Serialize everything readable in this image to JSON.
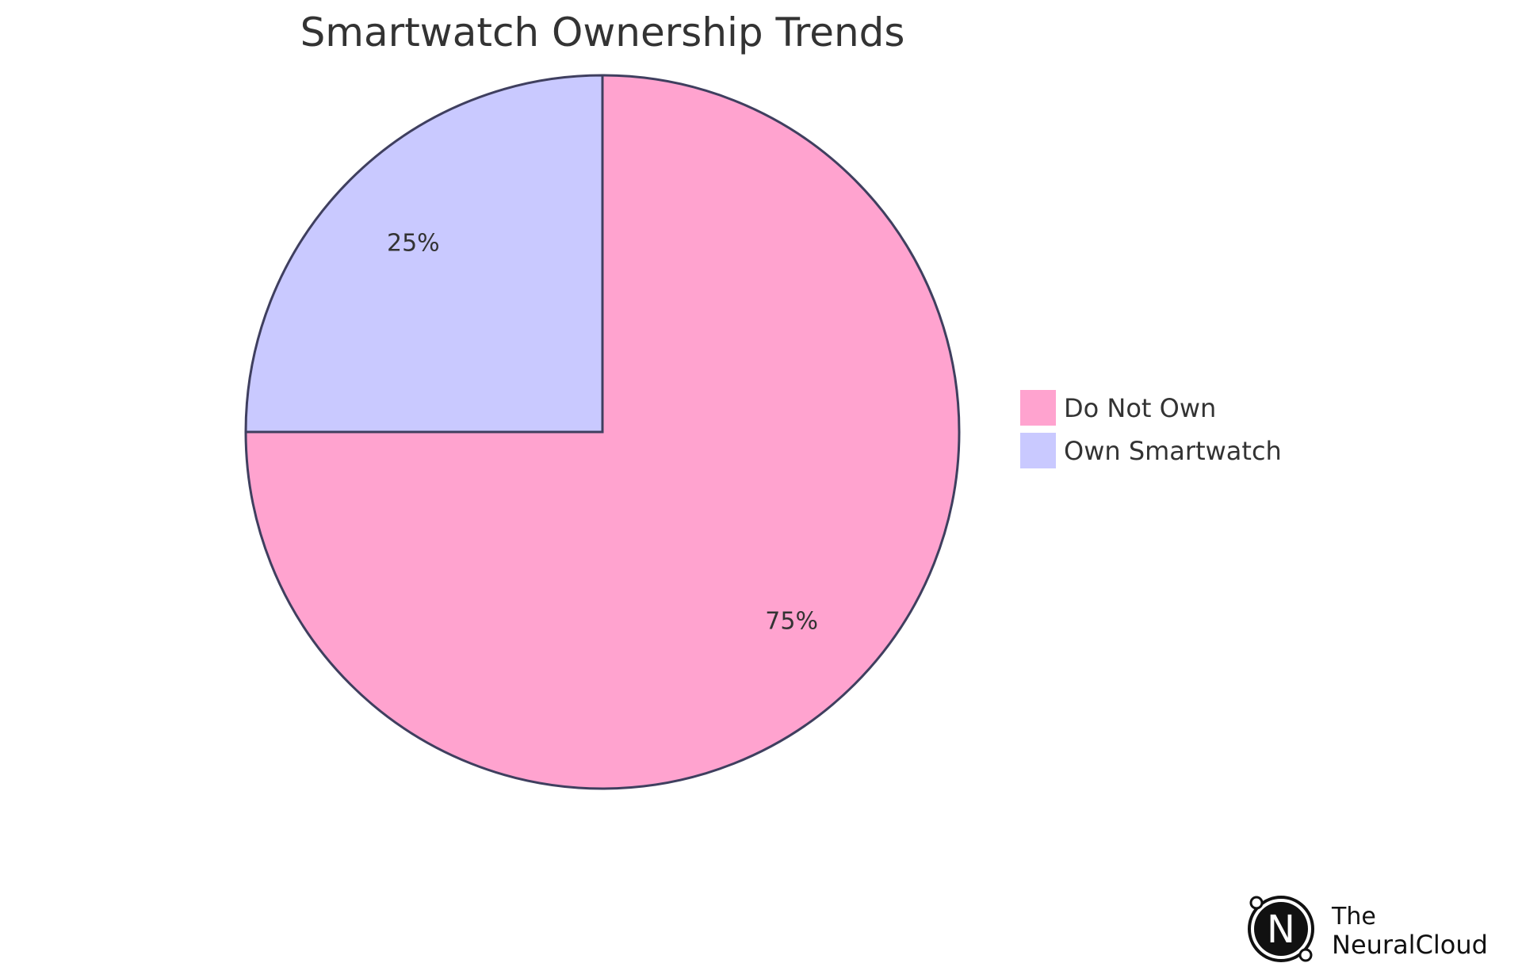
{
  "chart_data": {
    "type": "pie",
    "title": "Smartwatch Ownership Trends",
    "slices": [
      {
        "label": "Do Not Own",
        "value": 75,
        "display": "75%",
        "color": "#FFA3CF"
      },
      {
        "label": "Own Smartwatch",
        "value": 25,
        "display": "25%",
        "color": "#C9C9FF"
      }
    ],
    "stroke_color": "#3F3F5F",
    "legend": {
      "placement": "right"
    }
  },
  "watermark": {
    "line1": "The",
    "line2": "NeuralCloud",
    "logo_letter": "N",
    "icon": "neuralcloud-logo-icon"
  }
}
